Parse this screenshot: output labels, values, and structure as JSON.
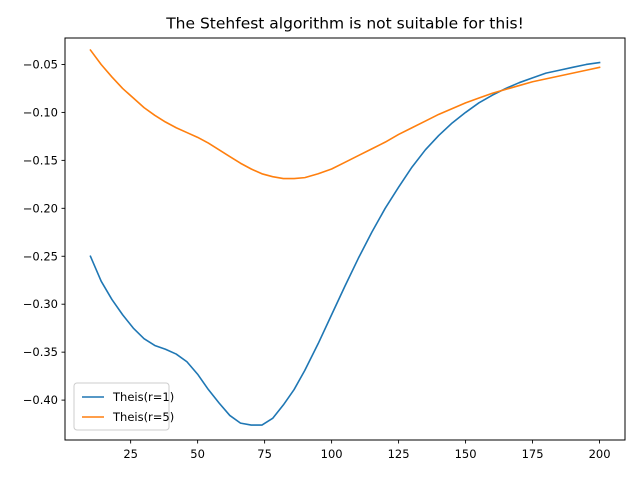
{
  "chart_data": {
    "type": "line",
    "title": "The Stehfest algorithm is not suitable for this!",
    "xlabel": "",
    "ylabel": "",
    "xlim": [
      0.5,
      209.5
    ],
    "ylim": [
      -0.4416,
      -0.0224
    ],
    "x_ticks": [
      25,
      50,
      75,
      100,
      125,
      150,
      175,
      200
    ],
    "x_tick_labels": [
      "25",
      "50",
      "75",
      "100",
      "125",
      "150",
      "175",
      "200"
    ],
    "y_ticks": [
      -0.05,
      -0.1,
      -0.15,
      -0.2,
      -0.25,
      -0.3,
      -0.35,
      -0.4
    ],
    "y_tick_labels": [
      "−0.05",
      "−0.10",
      "−0.15",
      "−0.20",
      "−0.25",
      "−0.30",
      "−0.35",
      "−0.40"
    ],
    "grid": false,
    "legend_position": "lower-left",
    "series": [
      {
        "name": "Theis(r=1)",
        "color": "#1f77b4",
        "x": [
          10,
          14,
          18,
          22,
          26,
          30,
          34,
          38,
          42,
          46,
          50,
          54,
          58,
          62,
          66,
          70,
          74,
          78,
          82,
          86,
          90,
          95,
          100,
          105,
          110,
          115,
          120,
          125,
          130,
          135,
          140,
          145,
          150,
          155,
          160,
          165,
          170,
          175,
          180,
          185,
          190,
          195,
          200
        ],
        "y": [
          -0.25,
          -0.276,
          -0.295,
          -0.311,
          -0.325,
          -0.336,
          -0.343,
          -0.347,
          -0.352,
          -0.36,
          -0.373,
          -0.389,
          -0.403,
          -0.416,
          -0.424,
          -0.426,
          -0.426,
          -0.419,
          -0.405,
          -0.389,
          -0.369,
          -0.341,
          -0.311,
          -0.281,
          -0.252,
          -0.225,
          -0.2,
          -0.178,
          -0.157,
          -0.139,
          -0.124,
          -0.111,
          -0.1,
          -0.09,
          -0.082,
          -0.075,
          -0.069,
          -0.064,
          -0.059,
          -0.056,
          -0.053,
          -0.05,
          -0.048
        ]
      },
      {
        "name": "Theis(r=5)",
        "color": "#ff7f0e",
        "x": [
          10,
          14,
          18,
          22,
          26,
          30,
          34,
          38,
          42,
          46,
          50,
          54,
          58,
          62,
          66,
          70,
          74,
          78,
          82,
          86,
          90,
          95,
          100,
          105,
          110,
          115,
          120,
          125,
          130,
          135,
          140,
          145,
          150,
          155,
          160,
          165,
          170,
          175,
          180,
          185,
          190,
          195,
          200
        ],
        "y": [
          -0.035,
          -0.05,
          -0.063,
          -0.075,
          -0.085,
          -0.095,
          -0.103,
          -0.11,
          -0.116,
          -0.121,
          -0.126,
          -0.132,
          -0.139,
          -0.146,
          -0.153,
          -0.159,
          -0.164,
          -0.167,
          -0.169,
          -0.169,
          -0.168,
          -0.164,
          -0.159,
          -0.152,
          -0.145,
          -0.138,
          -0.131,
          -0.123,
          -0.116,
          -0.109,
          -0.102,
          -0.096,
          -0.09,
          -0.085,
          -0.08,
          -0.076,
          -0.072,
          -0.068,
          -0.065,
          -0.062,
          -0.059,
          -0.056,
          -0.053
        ]
      }
    ]
  }
}
